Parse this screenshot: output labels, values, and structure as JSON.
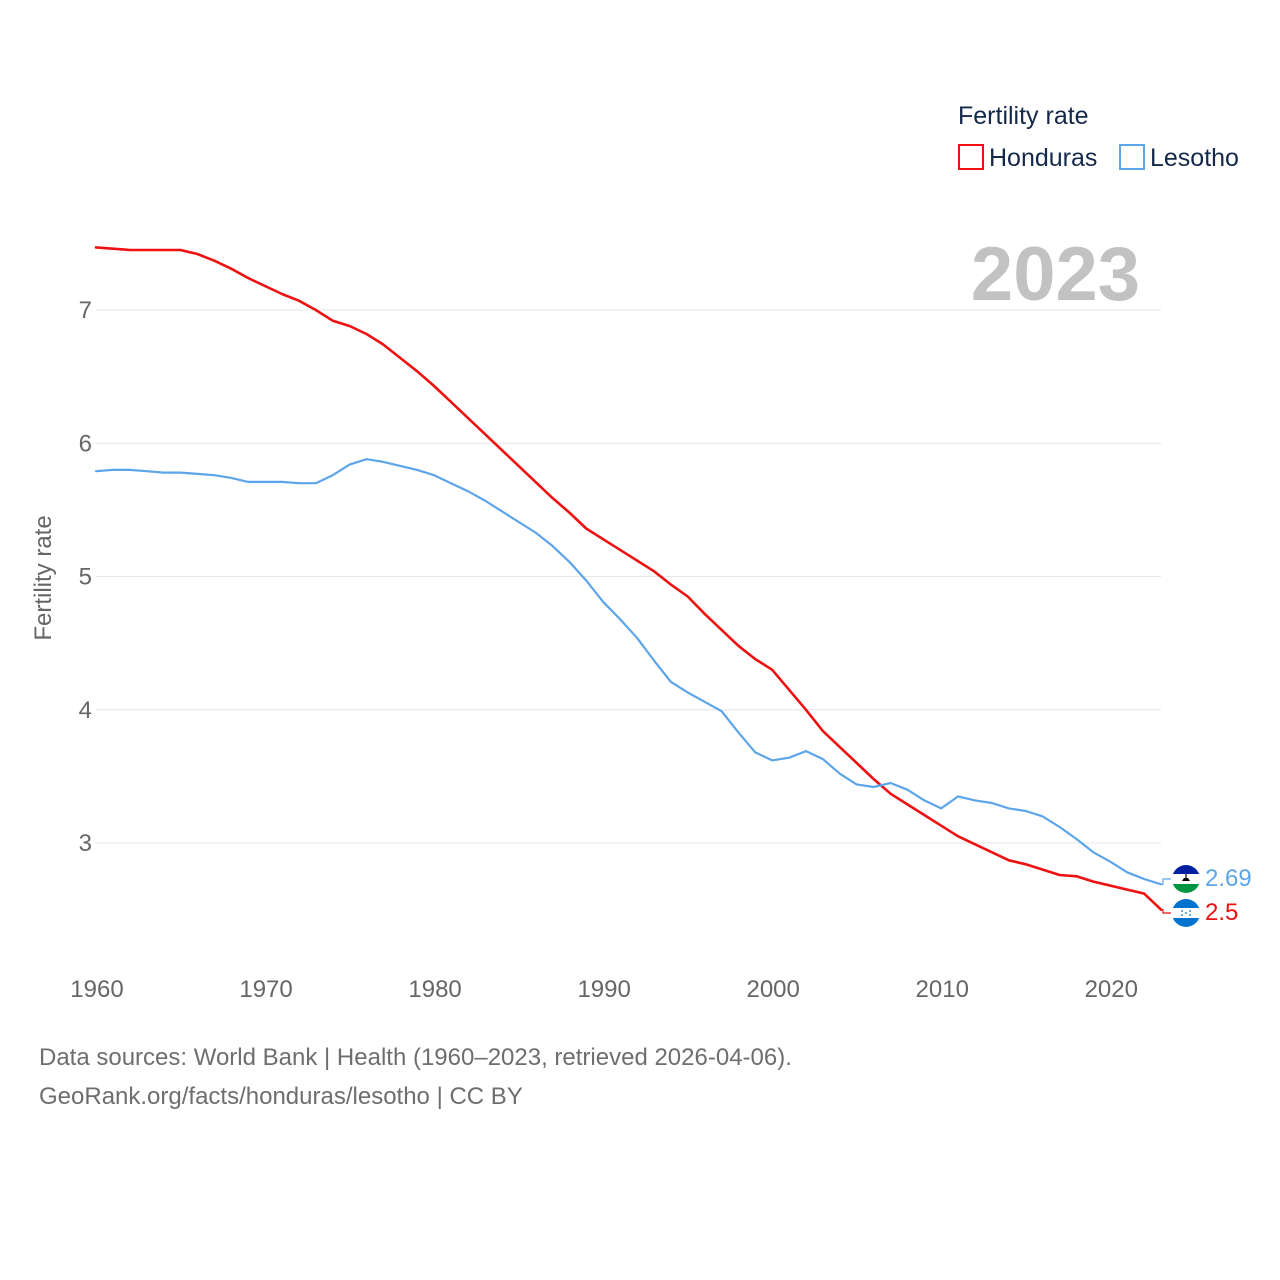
{
  "chart_data": {
    "type": "line",
    "title": "",
    "legend_title": "Fertility rate",
    "year_label": "2023",
    "ylabel": "Fertility rate",
    "xlabel": "",
    "xlim": [
      1960,
      2023
    ],
    "ylim": [
      2.2,
      7.7
    ],
    "x_ticks": [
      1960,
      1970,
      1980,
      1990,
      2000,
      2010,
      2020
    ],
    "y_ticks": [
      3,
      4,
      5,
      6,
      7
    ],
    "x": [
      1960,
      1961,
      1962,
      1963,
      1964,
      1965,
      1966,
      1967,
      1968,
      1969,
      1970,
      1971,
      1972,
      1973,
      1974,
      1975,
      1976,
      1977,
      1978,
      1979,
      1980,
      1981,
      1982,
      1983,
      1984,
      1985,
      1986,
      1987,
      1988,
      1989,
      1990,
      1991,
      1992,
      1993,
      1994,
      1995,
      1996,
      1997,
      1998,
      1999,
      2000,
      2001,
      2002,
      2003,
      2004,
      2005,
      2006,
      2007,
      2008,
      2009,
      2010,
      2011,
      2012,
      2013,
      2014,
      2015,
      2016,
      2017,
      2018,
      2019,
      2020,
      2021,
      2022,
      2023
    ],
    "series": [
      {
        "name": "Honduras",
        "color": "#ee1111",
        "end_label": "2.5",
        "values": [
          7.47,
          7.46,
          7.45,
          7.45,
          7.45,
          7.45,
          7.42,
          7.37,
          7.31,
          7.24,
          7.18,
          7.12,
          7.07,
          7.0,
          6.92,
          6.88,
          6.82,
          6.74,
          6.64,
          6.54,
          6.43,
          6.31,
          6.19,
          6.07,
          5.95,
          5.83,
          5.71,
          5.59,
          5.48,
          5.36,
          5.28,
          5.2,
          5.12,
          5.04,
          4.94,
          4.85,
          4.72,
          4.6,
          4.48,
          4.38,
          4.3,
          4.15,
          4.0,
          3.84,
          3.72,
          3.6,
          3.48,
          3.37,
          3.29,
          3.21,
          3.13,
          3.05,
          2.99,
          2.93,
          2.87,
          2.84,
          2.8,
          2.76,
          2.75,
          2.71,
          2.68,
          2.65,
          2.62,
          2.5
        ]
      },
      {
        "name": "Lesotho",
        "color": "#5da5ea",
        "end_label": "2.69",
        "values": [
          5.79,
          5.8,
          5.8,
          5.79,
          5.78,
          5.78,
          5.77,
          5.76,
          5.74,
          5.71,
          5.71,
          5.71,
          5.7,
          5.7,
          5.76,
          5.84,
          5.88,
          5.86,
          5.83,
          5.8,
          5.76,
          5.7,
          5.64,
          5.57,
          5.49,
          5.41,
          5.33,
          5.23,
          5.11,
          4.97,
          4.81,
          4.68,
          4.54,
          4.37,
          4.21,
          4.13,
          4.06,
          3.99,
          3.83,
          3.68,
          3.62,
          3.64,
          3.69,
          3.63,
          3.52,
          3.44,
          3.42,
          3.45,
          3.4,
          3.32,
          3.26,
          3.35,
          3.32,
          3.3,
          3.26,
          3.24,
          3.2,
          3.12,
          3.03,
          2.93,
          2.86,
          2.78,
          2.73,
          2.69
        ]
      }
    ]
  },
  "footer": {
    "line1": "Data sources: World Bank | Health (1960–2023, retrieved 2026-04-06).",
    "line2": "GeoRank.org/facts/honduras/lesotho | CC BY"
  },
  "colors": {
    "grid": "#e6e6e6",
    "text": "#666666",
    "legend_text": "#14284a",
    "year": "#c2c2c2"
  },
  "icons": {
    "honduras": "honduras-flag-icon",
    "lesotho": "lesotho-flag-icon"
  }
}
